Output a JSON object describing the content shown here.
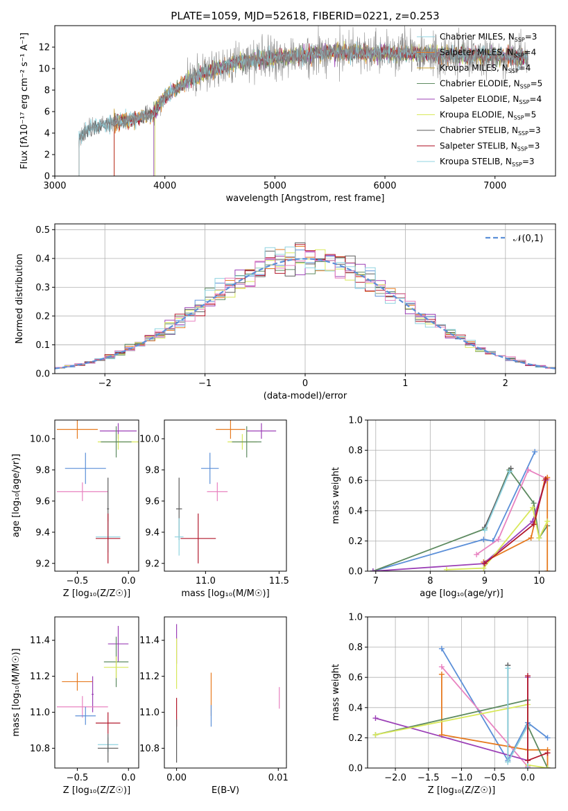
{
  "colors": {
    "blue": "#5b8fd8",
    "orange": "#e67a1f",
    "green": "#5d8a60",
    "purple": "#9b3fb6",
    "yellow": "#d8e85a",
    "gray": "#5a5a5a",
    "red": "#b2182b",
    "cyan": "#8fd3e0",
    "pink": "#e882c0"
  },
  "chart_data": [
    {
      "id": "spectrum",
      "type": "line",
      "title": "PLATE=1059, MJD=52618, FIBERID=0221, z=0.253",
      "xlabel": "wavelength [Angstrom, rest frame]",
      "ylabel": "Flux [fλ10⁻¹⁷ erg cm⁻² s⁻¹ A⁻¹]",
      "xlim": [
        3000,
        7550
      ],
      "ylim": [
        0,
        14
      ],
      "xticks": [
        "3000",
        "4000",
        "5000",
        "6000",
        "7000"
      ],
      "yticks": [
        "0",
        "2",
        "4",
        "6",
        "8",
        "10",
        "12"
      ],
      "grid": false,
      "legend_position": "top-right",
      "legend": [
        {
          "label": "Chabrier MILES, NSSP=3",
          "color": "#8fd3e0",
          "start": 3220
        },
        {
          "label": "Salpeter MILES, NSSP=4",
          "color": "#e67a1f",
          "start": 3540
        },
        {
          "label": "Kroupa MILES, NSSP=4",
          "color": "#c8a030",
          "start": 3540
        },
        {
          "label": "Chabrier ELODIE, NSSP=5",
          "color": "#5d8a60",
          "start": 3900
        },
        {
          "label": "Salpeter ELODIE, NSSP=4",
          "color": "#9b3fb6",
          "start": 3900
        },
        {
          "label": "Kroupa ELODIE, NSSP=5",
          "color": "#d8e85a",
          "start": 3910
        },
        {
          "label": "Chabrier STELIB, NSSP=3",
          "color": "#5a5a5a",
          "start": 3220
        },
        {
          "label": "Salpeter STELIB, NSSP=3",
          "color": "#b2182b",
          "start": 3540
        },
        {
          "label": "Kroupa STELIB, NSSP=3",
          "color": "#8fd3e0",
          "start": 3220
        }
      ],
      "continuum": [
        [
          3200,
          3.2
        ],
        [
          3300,
          4.4
        ],
        [
          3500,
          4.9
        ],
        [
          3700,
          5.2
        ],
        [
          3900,
          5.8
        ],
        [
          4000,
          7.4
        ],
        [
          4200,
          8.8
        ],
        [
          4400,
          9.8
        ],
        [
          4700,
          10.7
        ],
        [
          5000,
          11.0
        ],
        [
          5500,
          11.5
        ],
        [
          6000,
          11.4
        ],
        [
          6500,
          11.3
        ],
        [
          7000,
          11.2
        ],
        [
          7300,
          11.0
        ]
      ]
    },
    {
      "id": "residuals",
      "type": "step",
      "xlabel": "(data-model)/error",
      "ylabel": "Normed distribution",
      "xlim": [
        -2.5,
        2.5
      ],
      "ylim": [
        0,
        0.52
      ],
      "xticks": [
        "−2",
        "−1",
        "0",
        "1",
        "2"
      ],
      "yticks": [
        "0.0",
        "0.1",
        "0.2",
        "0.3",
        "0.4",
        "0.5"
      ],
      "grid": true,
      "legend_position": "top-right",
      "reference": {
        "label": "𝒩(0,1)",
        "color": "#5b8fd8",
        "mu": 0,
        "sigma": 1
      },
      "bin_width": 0.1
    },
    {
      "id": "age_vs_Z",
      "type": "errorbar",
      "xlabel": "Z [log₁₀(Z/Z☉)]",
      "ylabel": "age  [log₁₀(age/yr)]",
      "xlim": [
        -0.72,
        0.1
      ],
      "ylim": [
        9.15,
        10.12
      ],
      "xticks": [
        "−0.5",
        "0.0"
      ],
      "yticks": [
        "9.2",
        "9.4",
        "9.6",
        "9.8",
        "10.0"
      ],
      "grid": false,
      "points": [
        {
          "x": -0.5,
          "xerr": 0.2,
          "y": 10.06,
          "yerr": 0.06,
          "color": "#e67a1f"
        },
        {
          "x": -0.1,
          "xerr": 0.18,
          "y": 10.05,
          "yerr": 0.05,
          "color": "#9b3fb6"
        },
        {
          "x": -0.1,
          "xerr": 0.2,
          "y": 9.98,
          "yerr": 0.05,
          "color": "#d8e85a"
        },
        {
          "x": -0.12,
          "xerr": 0.15,
          "y": 9.98,
          "yerr": 0.1,
          "color": "#5d8a60"
        },
        {
          "x": -0.42,
          "xerr": 0.2,
          "y": 9.81,
          "yerr": 0.1,
          "color": "#5b8fd8"
        },
        {
          "x": -0.45,
          "xerr": 0.25,
          "y": 9.66,
          "yerr": 0.06,
          "color": "#e882c0"
        },
        {
          "x": -0.2,
          "xerr": 0.01,
          "y": 9.55,
          "yerr": 0.2,
          "color": "#5a5a5a"
        },
        {
          "x": -0.2,
          "xerr": 0.12,
          "y": 9.37,
          "yerr": 0.1,
          "color": "#8fd3e0"
        },
        {
          "x": -0.2,
          "xerr": 0.12,
          "y": 9.36,
          "yerr": 0.16,
          "color": "#b2182b"
        }
      ]
    },
    {
      "id": "age_vs_mass",
      "type": "errorbar",
      "xlabel": "mass [log₁₀(M/M☉)]",
      "ylabel": "",
      "xlim": [
        10.72,
        11.55
      ],
      "ylim": [
        9.15,
        10.12
      ],
      "xticks": [
        "11.0",
        "11.5"
      ],
      "yticks": [
        "9.2",
        "9.4",
        "9.6",
        "9.8",
        "10.0"
      ],
      "grid": false,
      "points": [
        {
          "x": 11.17,
          "xerr": 0.1,
          "y": 10.06,
          "yerr": 0.06,
          "color": "#e67a1f"
        },
        {
          "x": 11.38,
          "xerr": 0.1,
          "y": 10.05,
          "yerr": 0.05,
          "color": "#9b3fb6"
        },
        {
          "x": 11.25,
          "xerr": 0.1,
          "y": 9.98,
          "yerr": 0.05,
          "color": "#d8e85a"
        },
        {
          "x": 11.28,
          "xerr": 0.1,
          "y": 9.98,
          "yerr": 0.1,
          "color": "#5d8a60"
        },
        {
          "x": 11.03,
          "xerr": 0.06,
          "y": 9.81,
          "yerr": 0.1,
          "color": "#5b8fd8"
        },
        {
          "x": 11.08,
          "xerr": 0.07,
          "y": 9.66,
          "yerr": 0.06,
          "color": "#e882c0"
        },
        {
          "x": 10.82,
          "xerr": 0.02,
          "y": 9.55,
          "yerr": 0.2,
          "color": "#5a5a5a"
        },
        {
          "x": 10.82,
          "xerr": 0.03,
          "y": 9.37,
          "yerr": 0.12,
          "color": "#8fd3e0"
        },
        {
          "x": 10.95,
          "xerr": 0.12,
          "y": 9.36,
          "yerr": 0.16,
          "color": "#b2182b"
        }
      ]
    },
    {
      "id": "weight_vs_age",
      "type": "line",
      "xlabel": "age  [log₁₀(age/yr)]",
      "ylabel": "mass weight",
      "xlim": [
        6.85,
        10.3
      ],
      "ylim": [
        0,
        1.0
      ],
      "xticks": [
        "7",
        "8",
        "9",
        "10"
      ],
      "yticks": [
        "0.0",
        "0.2",
        "0.4",
        "0.6",
        "0.8",
        "1.0"
      ],
      "grid": true,
      "series": [
        {
          "color": "#5b8fd8",
          "x": [
            6.95,
            8.98,
            9.15,
            9.92
          ],
          "y": [
            0.0,
            0.21,
            0.2,
            0.79
          ]
        },
        {
          "color": "#5d8a60",
          "x": [
            6.95,
            9.0,
            9.45,
            9.9,
            10.0,
            10.15
          ],
          "y": [
            0.0,
            0.28,
            0.67,
            0.45,
            0.22,
            0.3
          ]
        },
        {
          "color": "#5a5a5a",
          "x": [
            9.0,
            9.48
          ],
          "y": [
            0.29,
            0.68
          ]
        },
        {
          "color": "#8fd3e0",
          "x": [
            9.0,
            9.46
          ],
          "y": [
            0.27,
            0.66
          ]
        },
        {
          "color": "#e882c0",
          "x": [
            8.85,
            9.25,
            9.8,
            10.15
          ],
          "y": [
            0.11,
            0.21,
            0.67,
            0.61
          ]
        },
        {
          "color": "#e67a1f",
          "x": [
            8.98,
            9.85,
            10.1,
            10.15,
            10.15
          ],
          "y": [
            0.06,
            0.22,
            0.6,
            0.62,
            0.0
          ]
        },
        {
          "color": "#9b3fb6",
          "x": [
            6.95,
            8.98,
            9.88,
            10.12
          ],
          "y": [
            0.0,
            0.05,
            0.33,
            0.6
          ]
        },
        {
          "color": "#d8e85a",
          "x": [
            8.3,
            8.98,
            9.88,
            10.0,
            10.15
          ],
          "y": [
            0.01,
            0.02,
            0.42,
            0.22,
            0.33
          ]
        },
        {
          "color": "#b2182b",
          "x": [
            9.0,
            9.9,
            10.12
          ],
          "y": [
            0.05,
            0.31,
            0.61
          ]
        }
      ]
    },
    {
      "id": "mass_vs_Z",
      "type": "errorbar",
      "xlabel": "Z [log₁₀(Z/Z☉)]",
      "ylabel": "mass [log₁₀(M/M☉)]",
      "xlim": [
        -0.72,
        0.1
      ],
      "ylim": [
        10.69,
        11.53
      ],
      "xticks": [
        "−0.5",
        "0.0"
      ],
      "yticks": [
        "10.8",
        "11.0",
        "11.2",
        "11.4"
      ],
      "grid": false,
      "points": [
        {
          "x": -0.1,
          "xerr": 0.1,
          "y": 11.38,
          "yerr": 0.1,
          "color": "#9b3fb6"
        },
        {
          "x": -0.12,
          "xerr": 0.12,
          "y": 11.28,
          "yerr": 0.14,
          "color": "#5d8a60"
        },
        {
          "x": -0.12,
          "xerr": 0.12,
          "y": 11.25,
          "yerr": 0.06,
          "color": "#d8e85a"
        },
        {
          "x": -0.5,
          "xerr": 0.15,
          "y": 11.17,
          "yerr": 0.05,
          "color": "#e67a1f"
        },
        {
          "x": -0.35,
          "xerr": 0.01,
          "y": 11.1,
          "yerr": 0.1,
          "color": "#9b3fb6"
        },
        {
          "x": -0.45,
          "xerr": 0.25,
          "y": 11.03,
          "yerr": 0.06,
          "color": "#e882c0"
        },
        {
          "x": -0.42,
          "xerr": 0.1,
          "y": 10.98,
          "yerr": 0.05,
          "color": "#5b8fd8"
        },
        {
          "x": -0.2,
          "xerr": 0.12,
          "y": 10.94,
          "yerr": 0.06,
          "color": "#b2182b"
        },
        {
          "x": -0.2,
          "xerr": 0.1,
          "y": 10.82,
          "yerr": 0.04,
          "color": "#8fd3e0"
        },
        {
          "x": -0.2,
          "xerr": 0.1,
          "y": 10.8,
          "yerr": 0.08,
          "color": "#5a5a5a"
        }
      ]
    },
    {
      "id": "mass_vs_EBV",
      "type": "errorbar",
      "xlabel": "E(B-V)",
      "ylabel": "",
      "xlim": [
        -0.0012,
        0.0108
      ],
      "ylim": [
        10.69,
        11.53
      ],
      "xticks": [
        "0.00",
        "0.01"
      ],
      "yticks": [
        "10.8",
        "11.0",
        "11.2",
        "11.4"
      ],
      "grid": false,
      "points": [
        {
          "x": 0.0,
          "xerr": 0,
          "y": 11.38,
          "yerr": 0.11,
          "color": "#9b3fb6"
        },
        {
          "x": 0.0,
          "xerr": 0,
          "y": 11.27,
          "yerr": 0.14,
          "color": "#d8e85a"
        },
        {
          "x": 0.0,
          "xerr": 0,
          "y": 11.0,
          "yerr": 0.08,
          "color": "#b2182b"
        },
        {
          "x": 0.0,
          "xerr": 0,
          "y": 10.84,
          "yerr": 0.12,
          "color": "#5a5a5a"
        },
        {
          "x": 0.0034,
          "xerr": 0,
          "y": 11.1,
          "yerr": 0.12,
          "color": "#e67a1f"
        },
        {
          "x": 0.0034,
          "xerr": 0,
          "y": 10.98,
          "yerr": 0.06,
          "color": "#5b8fd8"
        },
        {
          "x": 0.0101,
          "xerr": 0,
          "y": 11.08,
          "yerr": 0.06,
          "color": "#e882c0"
        }
      ]
    },
    {
      "id": "weight_vs_Z",
      "type": "line",
      "xlabel": "Z [log₁₀(Z/Z☉)]",
      "ylabel": "mass weight",
      "xlim": [
        -2.42,
        0.42
      ],
      "ylim": [
        0,
        1.0
      ],
      "xticks": [
        "−2.0",
        "−1.5",
        "−1.0",
        "−0.5",
        "0.0"
      ],
      "yticks": [
        "0.0",
        "0.2",
        "0.4",
        "0.6",
        "0.8",
        "1.0"
      ],
      "grid": true,
      "series": [
        {
          "color": "#5b8fd8",
          "x": [
            -1.3,
            -0.3,
            0.0,
            0.3
          ],
          "y": [
            0.79,
            0.05,
            0.3,
            0.2
          ]
        },
        {
          "color": "#e882c0",
          "x": [
            -1.3,
            0.0
          ],
          "y": [
            0.67,
            0.01
          ]
        },
        {
          "color": "#e67a1f",
          "x": [
            -1.3,
            -1.3,
            0.0,
            0.3,
            0.3
          ],
          "y": [
            0.62,
            0.22,
            0.12,
            0.12,
            0.0
          ]
        },
        {
          "color": "#5d8a60",
          "x": [
            -2.3,
            0.0,
            0.0,
            0.3
          ],
          "y": [
            0.22,
            0.45,
            0.28,
            0.0
          ]
        },
        {
          "color": "#9b3fb6",
          "x": [
            -2.3,
            0.0,
            0.0,
            0.0
          ],
          "y": [
            0.33,
            0.05,
            0.6,
            0.0
          ]
        },
        {
          "color": "#d8e85a",
          "x": [
            -2.3,
            0.0,
            0.0,
            0.3
          ],
          "y": [
            0.22,
            0.42,
            0.02,
            0.0
          ]
        },
        {
          "color": "#5a5a5a",
          "x": [
            -0.3,
            -0.3,
            0.0
          ],
          "y": [
            0.68,
            0.04,
            0.28
          ]
        },
        {
          "color": "#8fd3e0",
          "x": [
            -0.3,
            -0.3,
            0.0,
            0.0
          ],
          "y": [
            0.66,
            0.04,
            0.28,
            0.0
          ]
        },
        {
          "color": "#b2182b",
          "x": [
            0.0,
            0.0,
            0.3
          ],
          "y": [
            0.61,
            0.05,
            0.1
          ]
        }
      ]
    }
  ]
}
